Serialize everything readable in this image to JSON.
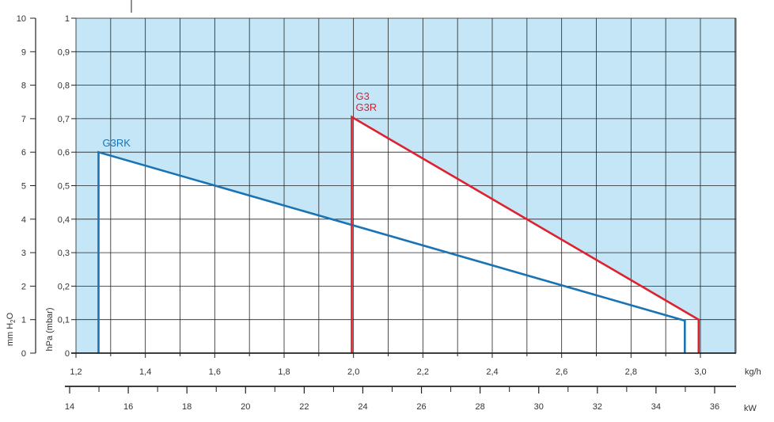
{
  "chart_data": {
    "type": "area",
    "x_axis": {
      "unit_label": "kg/h",
      "range": [
        1.2,
        3.0
      ],
      "ticks": [
        "1,2",
        "1,4",
        "1,6",
        "1,8",
        "2,0",
        "2,2",
        "2,4",
        "2,6",
        "2,8",
        "3,0"
      ],
      "tick_values": [
        1.2,
        1.4,
        1.6,
        1.8,
        2.0,
        2.2,
        2.4,
        2.6,
        2.8,
        3.0
      ]
    },
    "x_axis_secondary": {
      "unit_label": "kW",
      "ticks": [
        "14",
        "16",
        "18",
        "20",
        "22",
        "24",
        "26",
        "28",
        "30",
        "32",
        "34",
        "36"
      ],
      "tick_values": [
        14,
        16,
        18,
        20,
        22,
        24,
        26,
        28,
        30,
        32,
        34,
        36
      ]
    },
    "y_axis": {
      "label": "hPa (mbar)",
      "range": [
        0,
        1
      ],
      "ticks": [
        "0",
        "0,1",
        "0,2",
        "0,3",
        "0,4",
        "0,5",
        "0,6",
        "0,7",
        "0,8",
        "0,9",
        "1"
      ],
      "tick_values": [
        0,
        0.1,
        0.2,
        0.3,
        0.4,
        0.5,
        0.6,
        0.7,
        0.8,
        0.9,
        1.0
      ]
    },
    "y_axis_secondary": {
      "label_main": "mm H",
      "label_sub": "2",
      "label_end": "O",
      "ticks": [
        "0",
        "1",
        "2",
        "3",
        "4",
        "5",
        "6",
        "7",
        "8",
        "9",
        "10"
      ],
      "tick_values": [
        0,
        1,
        2,
        3,
        4,
        5,
        6,
        7,
        8,
        9,
        10
      ]
    },
    "grid": true,
    "series": [
      {
        "name": "G3RK",
        "color": "#1a73b5",
        "points": [
          [
            1.265,
            0
          ],
          [
            1.265,
            0.6
          ],
          [
            2.955,
            0.097
          ],
          [
            2.955,
            0
          ]
        ]
      },
      {
        "name": "G3",
        "name2": "G3R",
        "color": "#e0202e",
        "points": [
          [
            1.995,
            0
          ],
          [
            1.995,
            0.705
          ],
          [
            2.995,
            0.1
          ],
          [
            2.995,
            0
          ]
        ]
      }
    ]
  },
  "colors": {
    "plot_background": "#c4e6f6",
    "grid": "#222222",
    "working_area": "#ffffff"
  }
}
